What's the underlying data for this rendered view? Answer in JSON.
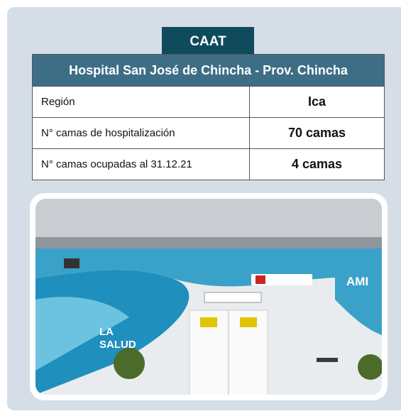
{
  "tab": "CAAT",
  "table": {
    "title": "Hospital San José de Chincha - Prov. Chincha",
    "rows": [
      [
        "Región",
        "Ica"
      ],
      [
        "N° camas de hospitalización",
        "70 camas"
      ],
      [
        "N° camas ocupadas al 31.12.21",
        "4 camas"
      ]
    ]
  },
  "photo": {
    "texts": [
      "LA",
      "SALUD",
      "AMI"
    ]
  }
}
